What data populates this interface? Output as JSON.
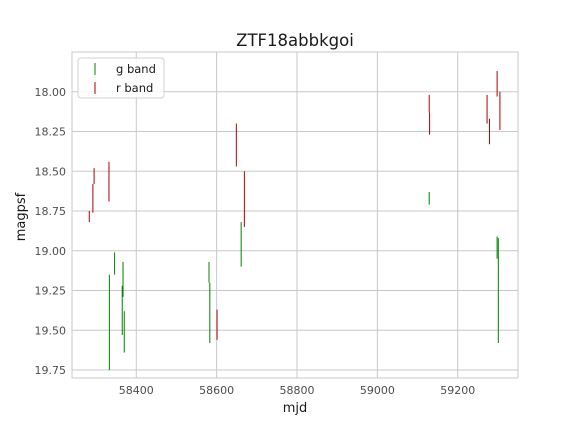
{
  "chart_data": {
    "type": "errorbar",
    "title": "ZTF18abbkgoi",
    "xlabel": "mjd",
    "ylabel": "magpsf",
    "xlim": [
      58240,
      59350
    ],
    "ylim": [
      19.8,
      17.75
    ],
    "y_inverted": true,
    "xticks": [
      58400,
      58600,
      58800,
      59000,
      59200
    ],
    "yticks": [
      18.0,
      18.25,
      18.5,
      18.75,
      19.0,
      19.25,
      19.5,
      19.75
    ],
    "xtick_labels": [
      "58400",
      "58600",
      "58800",
      "59000",
      "59200"
    ],
    "ytick_labels": [
      "18.00",
      "18.25",
      "18.50",
      "18.75",
      "19.00",
      "19.25",
      "19.50",
      "19.75"
    ],
    "grid": true,
    "legend_position": "upper-left",
    "series": [
      {
        "name": "g band",
        "color": "#008000",
        "points": [
          {
            "x": 58333,
            "ylo": 19.15,
            "yhi": 19.75
          },
          {
            "x": 58346,
            "ylo": 19.01,
            "yhi": 19.15
          },
          {
            "x": 58365,
            "ylo": 19.22,
            "yhi": 19.53
          },
          {
            "x": 58367,
            "ylo": 19.07,
            "yhi": 19.29
          },
          {
            "x": 58370,
            "ylo": 19.38,
            "yhi": 19.64
          },
          {
            "x": 58581,
            "ylo": 19.07,
            "yhi": 19.2
          },
          {
            "x": 58583,
            "ylo": 19.2,
            "yhi": 19.58
          },
          {
            "x": 58661,
            "ylo": 18.82,
            "yhi": 19.1
          },
          {
            "x": 59129,
            "ylo": 18.63,
            "yhi": 18.71
          },
          {
            "x": 59298,
            "ylo": 18.91,
            "yhi": 19.05
          },
          {
            "x": 59301,
            "ylo": 18.92,
            "yhi": 19.2
          },
          {
            "x": 59301,
            "ylo": 19.2,
            "yhi": 19.58
          }
        ]
      },
      {
        "name": "r band",
        "color": "#b00000",
        "points": [
          {
            "x": 58283,
            "ylo": 18.75,
            "yhi": 18.82
          },
          {
            "x": 58292,
            "ylo": 18.58,
            "yhi": 18.76
          },
          {
            "x": 58295,
            "ylo": 18.48,
            "yhi": 18.58
          },
          {
            "x": 58332,
            "ylo": 18.44,
            "yhi": 18.69
          },
          {
            "x": 58601,
            "ylo": 19.37,
            "yhi": 19.56
          },
          {
            "x": 58649,
            "ylo": 18.2,
            "yhi": 18.47
          },
          {
            "x": 58669,
            "ylo": 18.5,
            "yhi": 18.85
          },
          {
            "x": 59129,
            "ylo": 18.02,
            "yhi": 18.13
          },
          {
            "x": 59130,
            "ylo": 18.13,
            "yhi": 18.27
          },
          {
            "x": 59273,
            "ylo": 18.02,
            "yhi": 18.2
          },
          {
            "x": 59279,
            "ylo": 18.17,
            "yhi": 18.33
          },
          {
            "x": 59298,
            "ylo": 17.87,
            "yhi": 18.03
          },
          {
            "x": 59305,
            "ylo": 18.0,
            "yhi": 18.24
          }
        ]
      }
    ]
  }
}
